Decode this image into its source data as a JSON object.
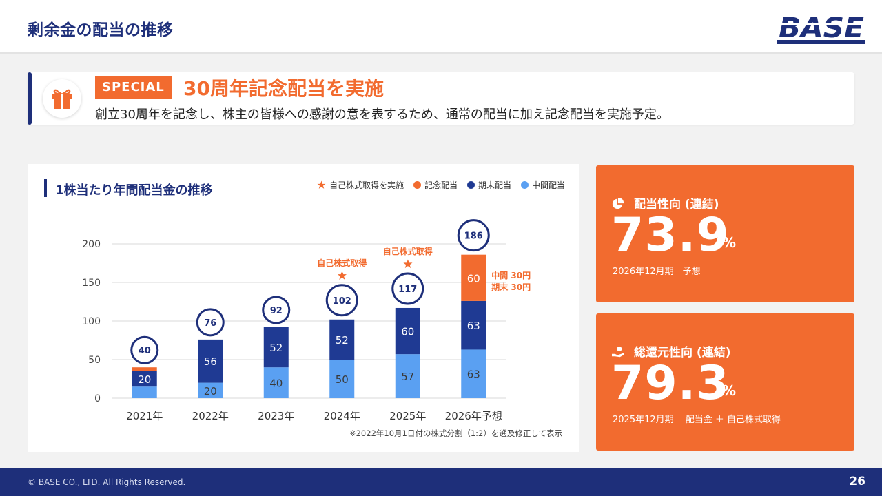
{
  "header": {
    "title": "剰余金の配当の推移",
    "logo_text": "BASE"
  },
  "banner": {
    "badge": "SPECIAL",
    "title": "30周年記念配当を実施",
    "description": "創立30周年を記念し、株主の皆様への感謝の意を表するため、通常の配当に加え記念配当を実施予定。"
  },
  "chart_section": {
    "title": "1株当たり年間配当金の推移",
    "note": "※2022年10月1日付の株式分割（1:2）を遡及修正して表示",
    "side_note_line1": "中間 30円",
    "side_note_line2": "期末 30円"
  },
  "legend": {
    "buyback": "自己株式取得を実施",
    "commemorative": "記念配当",
    "year_end": "期末配当",
    "interim": "中間配当"
  },
  "colors": {
    "navy": "#1e2f7a",
    "orange": "#f26b2f",
    "light_blue": "#5aa0f2",
    "year_end": "#1f3a93"
  },
  "chart_data": {
    "type": "bar",
    "stacked": true,
    "categories": [
      "2021年",
      "2022年",
      "2023年",
      "2024年",
      "2025年",
      "2026年予想"
    ],
    "series": [
      {
        "name": "中間配当",
        "values": [
          15,
          20,
          40,
          50,
          57,
          63
        ],
        "labels": [
          "",
          "20",
          "40",
          "50",
          "57",
          "63"
        ]
      },
      {
        "name": "期末配当",
        "values": [
          20,
          56,
          52,
          52,
          60,
          63
        ],
        "labels": [
          "20",
          "56",
          "52",
          "52",
          "60",
          "63"
        ]
      },
      {
        "name": "記念配当",
        "values": [
          5,
          0,
          0,
          0,
          0,
          60
        ],
        "labels": [
          "",
          "",
          "",
          "",
          "",
          "60"
        ]
      }
    ],
    "totals": [
      40,
      76,
      92,
      102,
      117,
      186
    ],
    "buyback_marks": [
      false,
      false,
      false,
      true,
      true,
      false
    ],
    "buyback_label": "自己株式取得",
    "ylim": [
      0,
      200
    ],
    "yticks": [
      0,
      50,
      100,
      150,
      200
    ],
    "grid": true,
    "legend_position": "top-right"
  },
  "kpis": [
    {
      "label": "配当性向 (連結)",
      "value": "73.9",
      "unit": "%",
      "sub": "2026年12月期　予想",
      "icon": "pie-chart-icon"
    },
    {
      "label": "総還元性向 (連結)",
      "value": "79.3",
      "unit": "%",
      "sub": "2025年12月期　 配当金 ＋ 自己株式取得",
      "icon": "hand-coin-icon"
    }
  ],
  "footer": {
    "copyright": "© BASE CO., LTD. All Rights Reserved.",
    "page": "26"
  }
}
